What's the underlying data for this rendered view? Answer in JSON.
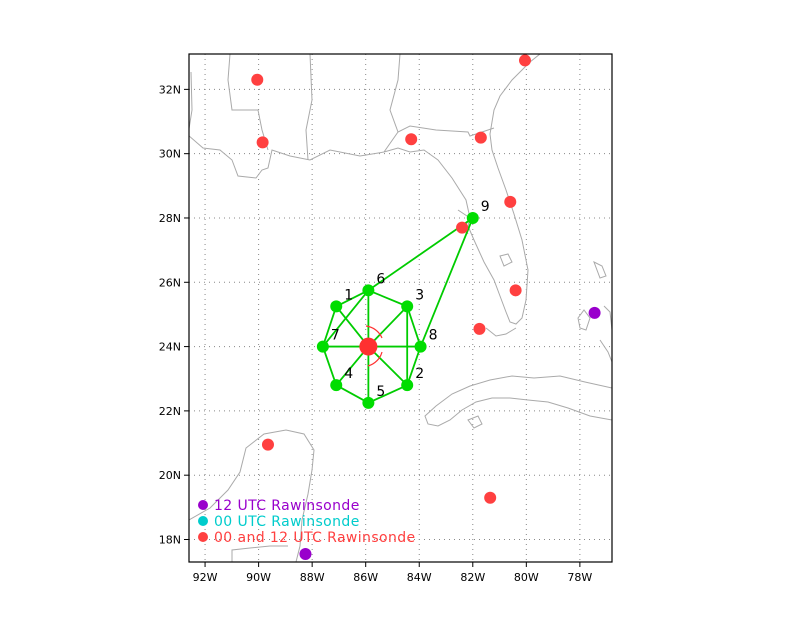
{
  "map": {
    "lon_range": [
      -92.6,
      -76.8
    ],
    "lat_range": [
      17.3,
      33.1
    ],
    "x_ticks": [
      {
        "lon": -92,
        "label": "92W"
      },
      {
        "lon": -90,
        "label": "90W"
      },
      {
        "lon": -88,
        "label": "88W"
      },
      {
        "lon": -86,
        "label": "86W"
      },
      {
        "lon": -84,
        "label": "84W"
      },
      {
        "lon": -82,
        "label": "82W"
      },
      {
        "lon": -80,
        "label": "80W"
      },
      {
        "lon": -78,
        "label": "78W"
      }
    ],
    "y_ticks": [
      {
        "lat": 18,
        "label": "18N"
      },
      {
        "lat": 20,
        "label": "20N"
      },
      {
        "lat": 22,
        "label": "22N"
      },
      {
        "lat": 24,
        "label": "24N"
      },
      {
        "lat": 26,
        "label": "26N"
      },
      {
        "lat": 28,
        "label": "28N"
      },
      {
        "lat": 30,
        "label": "30N"
      },
      {
        "lat": 32,
        "label": "32N"
      }
    ],
    "grid": "dotted",
    "colors": {
      "coastline": "#aaaaaa",
      "grid": "#888888",
      "frame": "#000000",
      "legs": "#00cc00",
      "station": "#00dd00",
      "rawinsonde_both": "#ff4040",
      "rawinsonde_12": "#9900cc",
      "rawinsonde_00": "#00cccc",
      "center_marker": "#ff3030"
    }
  },
  "stations": [
    {
      "id": "1",
      "label": "1",
      "lon": -87.1,
      "lat": 25.25
    },
    {
      "id": "2",
      "label": "2",
      "lon": -84.45,
      "lat": 22.8
    },
    {
      "id": "3",
      "label": "3",
      "lon": -84.45,
      "lat": 25.25
    },
    {
      "id": "4",
      "label": "4",
      "lon": -87.1,
      "lat": 22.8
    },
    {
      "id": "5",
      "label": "5",
      "lon": -85.9,
      "lat": 22.25
    },
    {
      "id": "6",
      "label": "6",
      "lon": -85.9,
      "lat": 25.75
    },
    {
      "id": "7",
      "label": "7",
      "lon": -87.6,
      "lat": 24.0
    },
    {
      "id": "8",
      "label": "8",
      "lon": -83.95,
      "lat": 24.0
    },
    {
      "id": "9",
      "label": "9",
      "lon": -82.0,
      "lat": 28.0
    }
  ],
  "storm_center": {
    "lon": -85.9,
    "lat": 24.0
  },
  "flight_legs": [
    [
      "C",
      "1"
    ],
    [
      "C",
      "2"
    ],
    [
      "C",
      "3"
    ],
    [
      "C",
      "4"
    ],
    [
      "C",
      "5"
    ],
    [
      "C",
      "6"
    ],
    [
      "C",
      "7"
    ],
    [
      "C",
      "8"
    ],
    [
      "1",
      "6"
    ],
    [
      "6",
      "3"
    ],
    [
      "3",
      "8"
    ],
    [
      "8",
      "9"
    ],
    [
      "2",
      "5"
    ],
    [
      "5",
      "4"
    ],
    [
      "4",
      "7"
    ],
    [
      "7",
      "1"
    ],
    [
      "7",
      "6"
    ],
    [
      "6",
      "9"
    ],
    [
      "3",
      "2"
    ],
    [
      "2",
      "8"
    ]
  ],
  "rawinsondes": [
    {
      "type": "both",
      "lon": -80.05,
      "lat": 32.9
    },
    {
      "type": "both",
      "lon": -90.05,
      "lat": 32.3
    },
    {
      "type": "both",
      "lon": -89.85,
      "lat": 30.35
    },
    {
      "type": "both",
      "lon": -84.3,
      "lat": 30.45
    },
    {
      "type": "both",
      "lon": -81.7,
      "lat": 30.5
    },
    {
      "type": "both",
      "lon": -80.6,
      "lat": 28.5
    },
    {
      "type": "both",
      "lon": -82.4,
      "lat": 27.7
    },
    {
      "type": "both",
      "lon": -80.4,
      "lat": 25.75
    },
    {
      "type": "both",
      "lon": -81.75,
      "lat": 24.55
    },
    {
      "type": "both",
      "lon": -89.65,
      "lat": 20.95
    },
    {
      "type": "both",
      "lon": -81.35,
      "lat": 19.3
    },
    {
      "type": "12",
      "lon": -77.45,
      "lat": 25.05
    },
    {
      "type": "12",
      "lon": -88.25,
      "lat": 17.55
    }
  ],
  "legend": [
    {
      "type": "12",
      "label": "12 UTC Rawinsonde"
    },
    {
      "type": "00",
      "label": "00 UTC Rawinsonde"
    },
    {
      "type": "both",
      "label": "00 and 12 UTC Rawinsonde"
    }
  ]
}
